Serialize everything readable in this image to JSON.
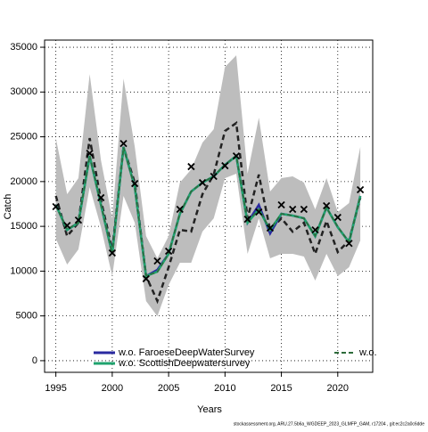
{
  "chart_data": {
    "type": "line",
    "xlabel": "Years",
    "ylabel": "Catch",
    "footer": "stockassessment.org, ARU.27.5b6a_WGDEEP_2023_GLMFP_GAM, r17204 , git:ec2c2a0c6dde",
    "x": [
      1995,
      1996,
      1997,
      1998,
      1999,
      2000,
      2001,
      2002,
      2003,
      2004,
      2005,
      2006,
      2007,
      2008,
      2009,
      2010,
      2011,
      2012,
      2013,
      2014,
      2015,
      2016,
      2017,
      2018,
      2019,
      2020,
      2021,
      2022
    ],
    "xlim": [
      1994,
      2023.1
    ],
    "xticks": [
      1995,
      2000,
      2005,
      2010,
      2015,
      2020
    ],
    "ylim": [
      -1300,
      35800
    ],
    "yticks": [
      0,
      5000,
      10000,
      15000,
      20000,
      25000,
      30000,
      35000
    ],
    "grid": true,
    "band": {
      "color": "#bdbdbd",
      "upper": [
        24850,
        18590,
        20380,
        32000,
        22370,
        15900,
        31500,
        23860,
        13920,
        11430,
        13920,
        19880,
        21370,
        24350,
        25840,
        32800,
        34100,
        20880,
        27140,
        18890,
        20380,
        20580,
        19880,
        16900,
        20380,
        16600,
        17600,
        23860
      ],
      "lower": [
        13620,
        10740,
        12430,
        19380,
        14910,
        9440,
        18390,
        15400,
        6660,
        4970,
        8450,
        10940,
        10940,
        14410,
        15900,
        20380,
        20880,
        11930,
        15900,
        11430,
        11930,
        11930,
        11630,
        8950,
        11930,
        9440,
        10440,
        13420
      ]
    },
    "series": [
      {
        "color": "#222222",
        "dash": "6,4",
        "width": 2.5,
        "values": [
          18400,
          13900,
          15400,
          24850,
          17900,
          12430,
          23860,
          19880,
          9440,
          6660,
          10440,
          14610,
          14420,
          18590,
          20780,
          25650,
          26540,
          15900,
          20780,
          14600,
          15900,
          14400,
          15400,
          11930,
          15600,
          12130,
          13400,
          18200
        ]
      },
      {
        "name": "w.o. FaroeseDeepWaterSurvey",
        "color": "#2a2aa0",
        "dash": "none",
        "width": 2.5,
        "values": [
          17400,
          14600,
          15400,
          22860,
          17400,
          11930,
          23860,
          19380,
          9440,
          10140,
          11930,
          16400,
          18890,
          19880,
          20580,
          21870,
          22860,
          15400,
          17400,
          14200,
          16400,
          16200,
          15900,
          13900,
          17100,
          14910,
          13220,
          18390
        ]
      },
      {
        "name": "w.o. ScottishDeepwatersurvey",
        "color": "#1fa36e",
        "dash": "none",
        "width": 2.5,
        "values": [
          17400,
          14600,
          15400,
          22860,
          17400,
          11930,
          23860,
          19380,
          9440,
          9940,
          11930,
          16400,
          18890,
          19880,
          20580,
          21870,
          22860,
          15400,
          16900,
          14600,
          16400,
          16200,
          15900,
          13900,
          17100,
          14910,
          13220,
          18390
        ]
      },
      {
        "name": "w.o.",
        "color": "#2d6b3a",
        "dash": "5,3",
        "width": 1.5,
        "values": [
          17300,
          14700,
          15400,
          22900,
          17500,
          11950,
          23800,
          19400,
          9500,
          9900,
          11950,
          16500,
          18900,
          19900,
          20600,
          21900,
          22900,
          15500,
          16900,
          14700,
          16400,
          16200,
          15900,
          13950,
          17100,
          14950,
          13250,
          18400
        ]
      }
    ],
    "points": {
      "color": "#000000",
      "values": [
        17200,
        15100,
        15700,
        23160,
        18200,
        12030,
        24250,
        19780,
        9150,
        11130,
        12230,
        16900,
        21670,
        19880,
        20580,
        21770,
        22860,
        15800,
        16600,
        14810,
        17400,
        16900,
        16900,
        14600,
        17300,
        16000,
        13100,
        19090
      ]
    }
  }
}
